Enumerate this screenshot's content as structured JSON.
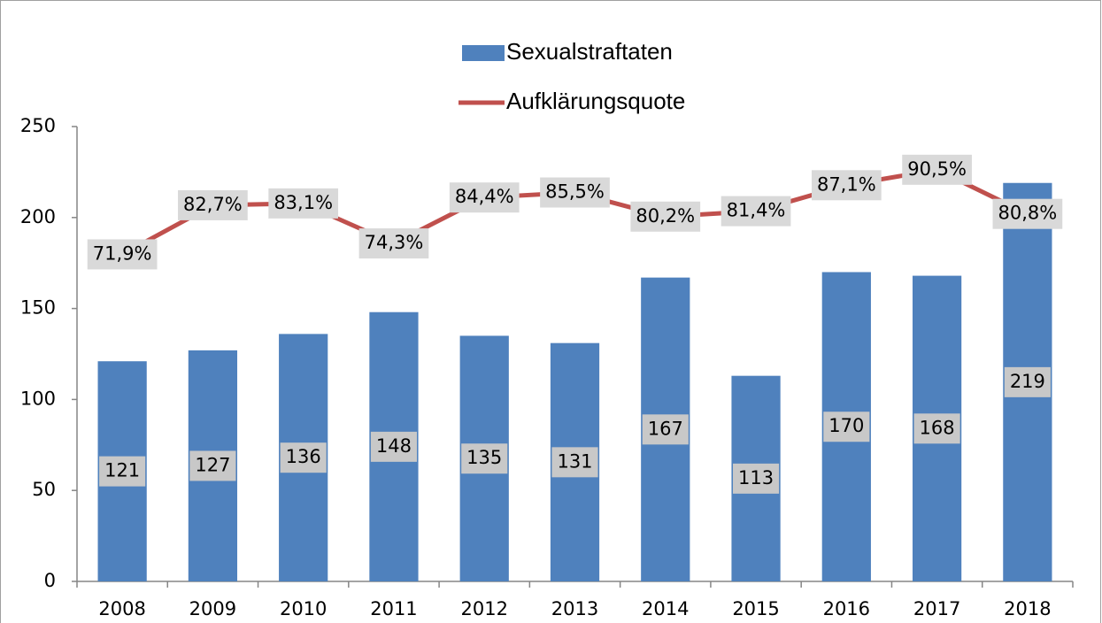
{
  "chart_data": {
    "type": "bar_line",
    "categories": [
      "2008",
      "2009",
      "2010",
      "2011",
      "2012",
      "2013",
      "2014",
      "2015",
      "2016",
      "2017",
      "2018"
    ],
    "series": [
      {
        "name": "Sexualstraftaten",
        "type": "bar",
        "color": "#4f81bd",
        "values": [
          121,
          127,
          136,
          148,
          135,
          131,
          167,
          113,
          170,
          168,
          219
        ]
      },
      {
        "name": "Aufklärungsquote",
        "type": "line",
        "axis": "y2",
        "color": "#c0504d",
        "values": [
          71.9,
          82.7,
          83.1,
          74.3,
          84.4,
          85.5,
          80.2,
          81.4,
          87.1,
          90.5,
          80.8
        ],
        "value_labels": [
          "71,9%",
          "82,7%",
          "83,1%",
          "74,3%",
          "84,4%",
          "85,5%",
          "80,2%",
          "81,4%",
          "87,1%",
          "90,5%",
          "80,8%"
        ]
      }
    ],
    "ylim": [
      0,
      250
    ],
    "yticks": [
      0,
      50,
      100,
      150,
      200,
      250
    ],
    "y2lim": [
      0,
      100
    ],
    "legend": "top"
  }
}
